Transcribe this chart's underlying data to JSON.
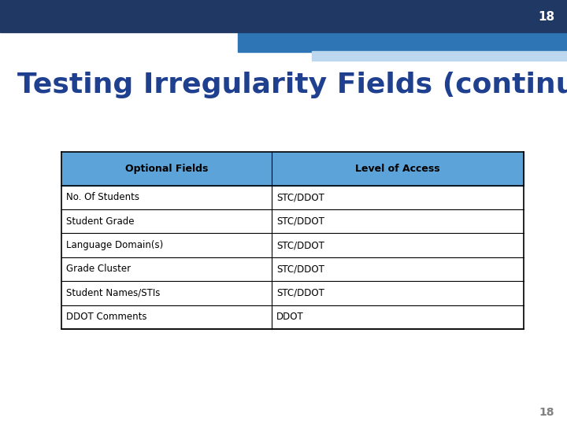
{
  "slide_number": "18",
  "title": "Testing Irregularity Fields (continued)",
  "title_color": "#1F3F8F",
  "top_bar_dark": "#1F3864",
  "top_bar_medium": "#2E75B6",
  "top_bar_light": "#BDD7EE",
  "table_header_bg": "#5BA3D9",
  "table_header_text": "#000000",
  "table_border_color": "#000000",
  "table_col1_header": "Optional Fields",
  "table_col2_header": "Level of Access",
  "table_rows": [
    [
      "No. Of Students",
      "STC/DDOT"
    ],
    [
      "Student Grade",
      "STC/DDOT"
    ],
    [
      "Language Domain(s)",
      "STC/DDOT"
    ],
    [
      "Grade Cluster",
      "STC/DDOT"
    ],
    [
      "Student Names/STIs",
      "STC/DDOT"
    ],
    [
      "DDOT Comments",
      "DDOT"
    ]
  ],
  "background_color": "#FFFFFF",
  "slide_number_color_top": "#FFFFFF",
  "slide_number_color_bottom": "#808080"
}
